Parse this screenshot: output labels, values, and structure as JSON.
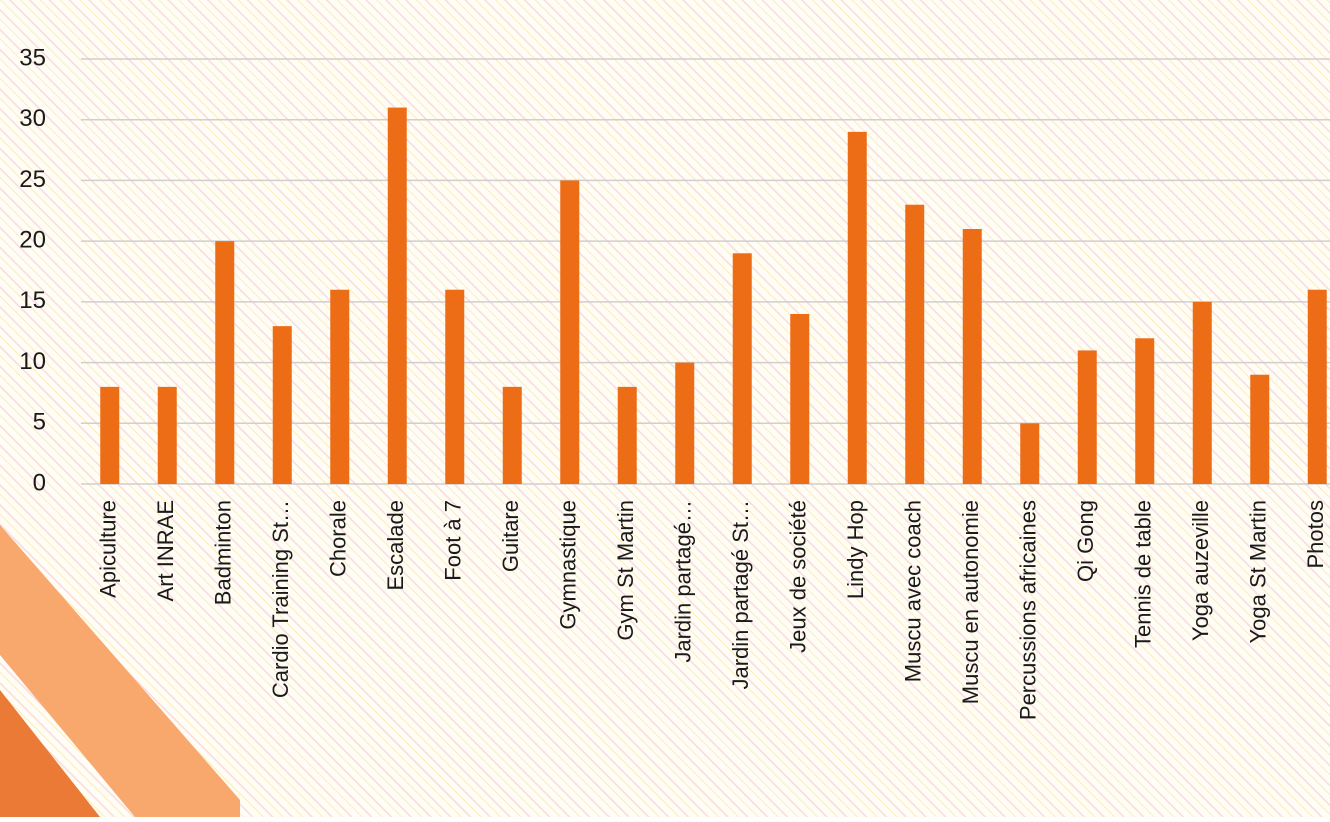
{
  "chart_data": {
    "type": "bar",
    "categories": [
      "Apiculture",
      "Art INRAE",
      "Badminton",
      "Cardio Training St…",
      "Chorale",
      "Escalade",
      "Foot à 7",
      "Guitare",
      "Gymnastique",
      "Gym St Martin",
      "Jardin partagé…",
      "Jardin partagé St…",
      "Jeux de société",
      "Lindy Hop",
      "Muscu avec coach",
      "Muscu en autonomie",
      "Percussions africaines",
      "Qi Gong",
      "Tennis de table",
      "Yoga auzeville",
      "Yoga St Martin",
      "Photos"
    ],
    "values": [
      8,
      8,
      20,
      13,
      16,
      31,
      16,
      8,
      25,
      8,
      10,
      19,
      14,
      29,
      23,
      21,
      5,
      11,
      12,
      15,
      9,
      16
    ],
    "color": "#ed6d16",
    "ylim": [
      0,
      35
    ],
    "yticks": [
      0,
      5,
      10,
      15,
      20,
      25,
      30,
      35
    ],
    "grid": true
  }
}
